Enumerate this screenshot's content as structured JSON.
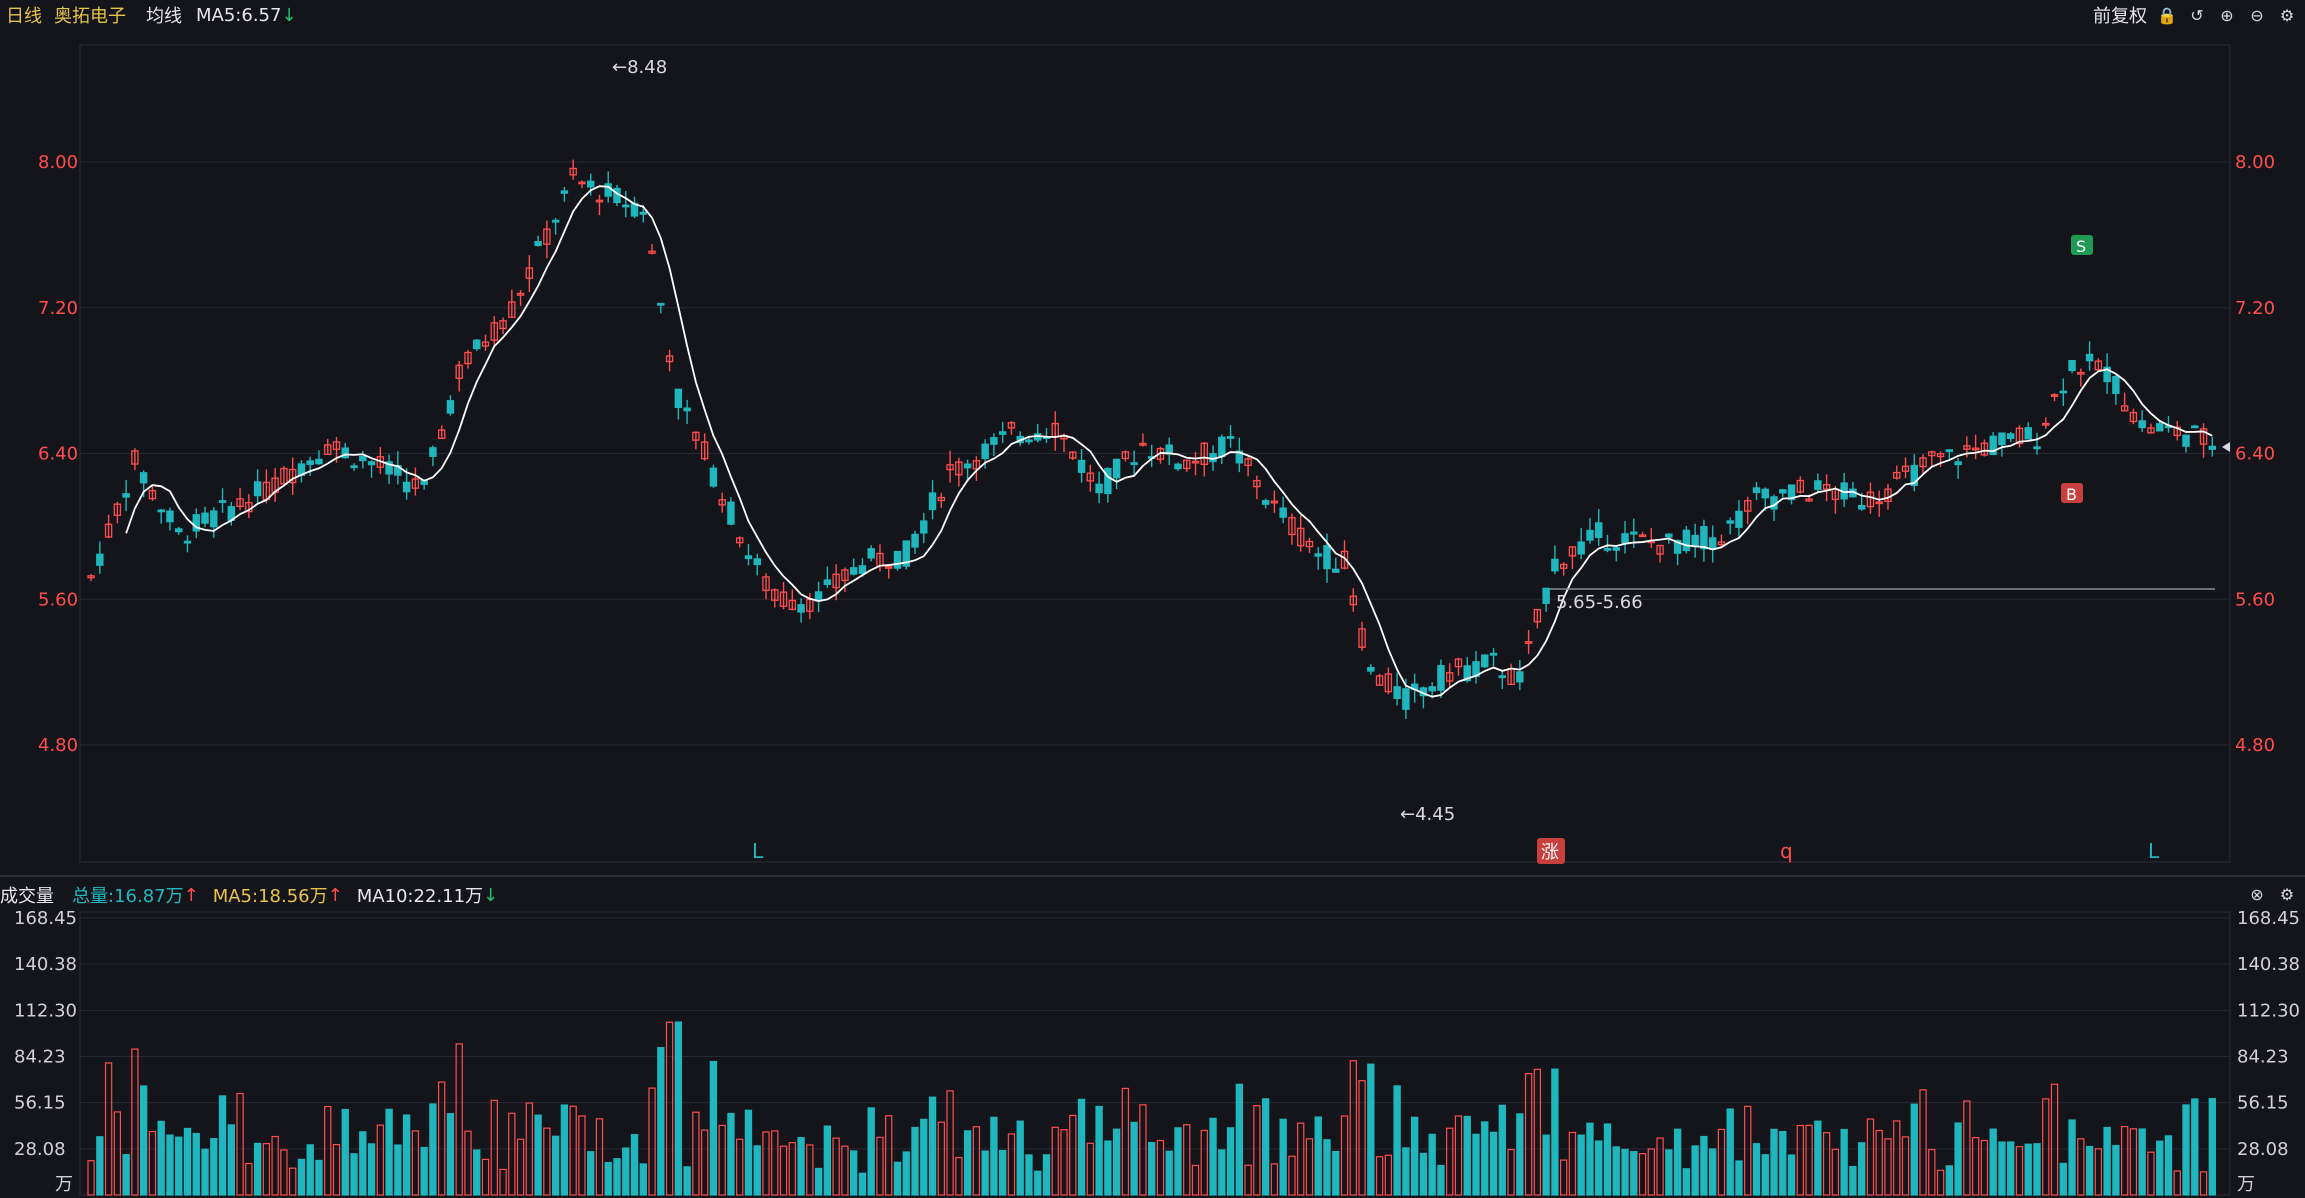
{
  "header": {
    "period": "日线",
    "stock_name": "奥拓电子",
    "ma_group": "均线",
    "ma5_text": "MA5:6.57",
    "ma5_arrow": "↓",
    "adjust": "前复权"
  },
  "price_axis": {
    "ticks": [
      "8.00",
      "7.20",
      "6.40",
      "5.60",
      "4.80"
    ]
  },
  "annotations": {
    "high": "←8.48",
    "low": "←4.45",
    "gap": "5.65-5.66",
    "signal_s": "S",
    "signal_b": "B",
    "zhang": "涨",
    "markers": [
      "L",
      "q",
      "L"
    ]
  },
  "volume": {
    "title": "成交量",
    "total": "总量:16.87万",
    "ma5": "MA5:18.56万",
    "ma10": "MA10:22.11万",
    "up_arrow": "↑",
    "down_arrow": "↓",
    "ticks": [
      "168.45",
      "140.38",
      "112.30",
      "84.23",
      "56.15",
      "28.08"
    ],
    "unit": "万"
  },
  "colors": {
    "up": "#ff4d4d",
    "down": "#1fb6bd",
    "ma5": "#ffffff",
    "vol_ma5": "#f0c020",
    "vol_ma10": "#ffffff",
    "bg": "#14151b"
  },
  "icons": [
    "lock-icon",
    "undo-icon",
    "zoom-in-icon",
    "zoom-out-icon",
    "gear-icon",
    "close-icon"
  ]
}
